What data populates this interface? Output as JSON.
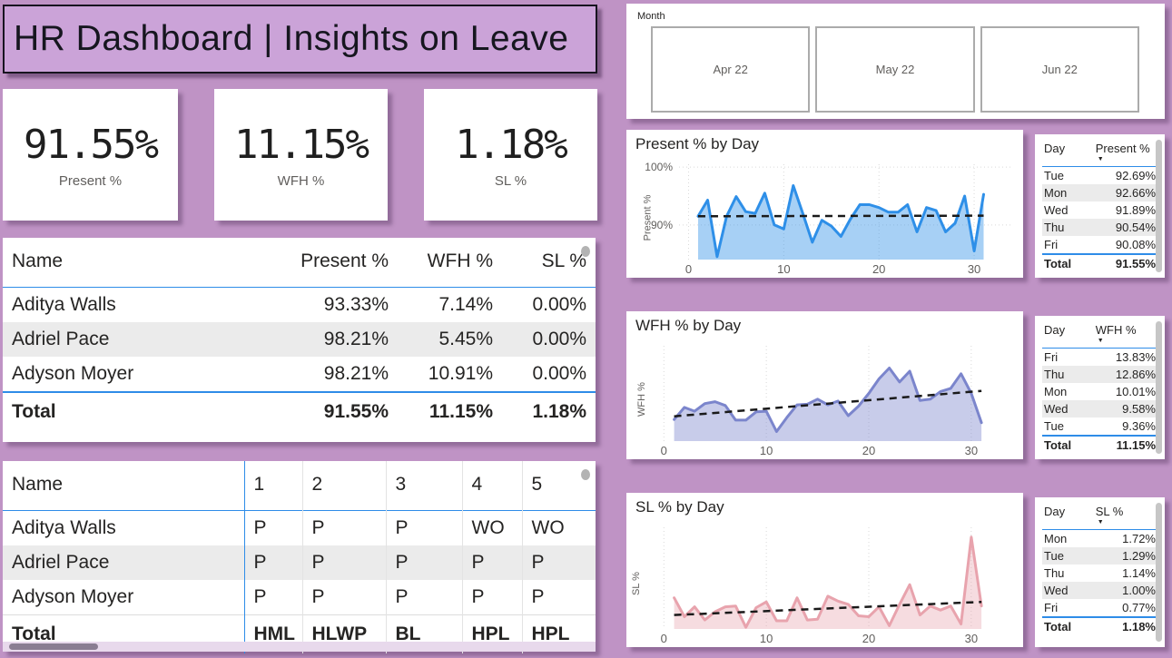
{
  "page_title": "HR Dashboard | Insights on Leave",
  "kpis": [
    {
      "value": "91.55%",
      "label": "Present %"
    },
    {
      "value": "11.15%",
      "label": "WFH %"
    },
    {
      "value": "1.18%",
      "label": "SL %"
    }
  ],
  "month_slicer": {
    "label": "Month",
    "options": [
      "Apr 22",
      "May 22",
      "Jun 22"
    ]
  },
  "summary_table": {
    "headers": [
      "Name",
      "Present %",
      "WFH %",
      "SL %"
    ],
    "rows": [
      [
        "Aditya Walls",
        "93.33%",
        "7.14%",
        "0.00%"
      ],
      [
        "Adriel Pace",
        "98.21%",
        "5.45%",
        "0.00%"
      ],
      [
        "Adyson Moyer",
        "98.21%",
        "10.91%",
        "0.00%"
      ]
    ],
    "total": [
      "Total",
      "91.55%",
      "11.15%",
      "1.18%"
    ]
  },
  "attendance_table": {
    "headers": [
      "Name",
      "1",
      "2",
      "3",
      "4",
      "5"
    ],
    "rows": [
      [
        "Aditya Walls",
        "P",
        "P",
        "P",
        "WO",
        "WO"
      ],
      [
        "Adriel Pace",
        "P",
        "P",
        "P",
        "P",
        "P"
      ],
      [
        "Adyson Moyer",
        "P",
        "P",
        "P",
        "P",
        "P"
      ]
    ],
    "total": [
      "Total",
      "HML",
      "HLWP",
      "BL",
      "HPL",
      "HPL"
    ]
  },
  "day_tables": [
    {
      "day_header": "Day",
      "metric": "Present %",
      "rows": [
        [
          "Tue",
          "92.69%"
        ],
        [
          "Mon",
          "92.66%"
        ],
        [
          "Wed",
          "91.89%"
        ],
        [
          "Thu",
          "90.54%"
        ],
        [
          "Fri",
          "90.08%"
        ]
      ],
      "total": [
        "Total",
        "91.55%"
      ]
    },
    {
      "day_header": "Day",
      "metric": "WFH %",
      "rows": [
        [
          "Fri",
          "13.83%"
        ],
        [
          "Thu",
          "12.86%"
        ],
        [
          "Mon",
          "10.01%"
        ],
        [
          "Wed",
          "9.58%"
        ],
        [
          "Tue",
          "9.36%"
        ]
      ],
      "total": [
        "Total",
        "11.15%"
      ]
    },
    {
      "day_header": "Day",
      "metric": "SL %",
      "rows": [
        [
          "Mon",
          "1.72%"
        ],
        [
          "Tue",
          "1.29%"
        ],
        [
          "Thu",
          "1.14%"
        ],
        [
          "Wed",
          "1.00%"
        ],
        [
          "Fri",
          "0.77%"
        ]
      ],
      "total": [
        "Total",
        "1.18%"
      ]
    }
  ],
  "chart_data": [
    {
      "type": "area",
      "title": "Present % by Day",
      "ylabel": "Present %",
      "x": [
        1,
        2,
        3,
        4,
        5,
        6,
        7,
        8,
        9,
        10,
        11,
        12,
        13,
        14,
        15,
        16,
        17,
        18,
        19,
        20,
        21,
        22,
        23,
        24,
        25,
        26,
        27,
        28,
        29,
        30,
        31
      ],
      "values": [
        91.5,
        94.3,
        84.5,
        91.5,
        94.9,
        92.3,
        92.0,
        95.5,
        90.0,
        89.3,
        96.8,
        92.0,
        87.0,
        90.8,
        89.8,
        88.0,
        91.0,
        93.5,
        93.5,
        93.0,
        92.2,
        92.2,
        93.5,
        88.8,
        93.0,
        92.5,
        88.8,
        90.3,
        95.0,
        85.5,
        95.3
      ],
      "trendline": {
        "start": 91.5,
        "end": 91.6
      },
      "ylim": [
        84,
        100.5
      ],
      "xticks": [
        0,
        10,
        20,
        30
      ],
      "yticks": [
        {
          "value": 100,
          "label": "100%"
        },
        {
          "value": 90,
          "label": "90%"
        }
      ],
      "line_color": "#2E8FE8",
      "fill_color": "rgba(46,143,232,0.42)",
      "trend_color": "#1a1a1a",
      "grid": true,
      "legend": "none"
    },
    {
      "type": "area",
      "title": "WFH % by Day",
      "ylabel": "WFH %",
      "x": [
        1,
        2,
        3,
        4,
        5,
        6,
        7,
        8,
        9,
        10,
        11,
        12,
        13,
        14,
        15,
        16,
        17,
        18,
        19,
        20,
        21,
        22,
        23,
        24,
        25,
        26,
        27,
        28,
        29,
        30,
        31
      ],
      "values": [
        8.4,
        10.3,
        9.7,
        10.9,
        11.2,
        10.6,
        8.3,
        8.3,
        9.6,
        9.7,
        6.5,
        8.7,
        10.7,
        10.8,
        11.6,
        10.7,
        11.3,
        9.0,
        10.5,
        12.5,
        14.8,
        16.5,
        14.3,
        16.0,
        11.4,
        11.6,
        12.8,
        13.3,
        15.6,
        12.5,
        7.9
      ],
      "trendline": {
        "start": 8.9,
        "end": 12.9
      },
      "ylim": [
        5,
        20
      ],
      "xticks": [
        0,
        10,
        20,
        30
      ],
      "yticks": [],
      "line_color": "#7B85CC",
      "fill_color": "rgba(123,133,204,0.42)",
      "trend_color": "#1a1a1a",
      "grid": true,
      "legend": "none"
    },
    {
      "type": "area",
      "title": "SL % by Day",
      "ylabel": "SL %",
      "x": [
        1,
        2,
        3,
        4,
        5,
        6,
        7,
        8,
        9,
        10,
        11,
        12,
        13,
        14,
        15,
        16,
        17,
        18,
        19,
        20,
        21,
        22,
        23,
        24,
        25,
        26,
        27,
        28,
        29,
        30,
        31
      ],
      "values": [
        1.9,
        0.75,
        1.35,
        0.55,
        1.05,
        1.35,
        1.4,
        0.1,
        1.3,
        1.65,
        0.5,
        0.5,
        1.9,
        0.55,
        0.6,
        2.0,
        1.7,
        1.5,
        0.8,
        0.75,
        1.35,
        0.2,
        1.5,
        2.7,
        0.85,
        1.4,
        1.15,
        1.4,
        0.3,
        5.6,
        1.4
      ],
      "trendline": {
        "start": 0.85,
        "end": 1.65
      },
      "ylim": [
        0,
        6.2
      ],
      "xticks": [
        0,
        10,
        20,
        30
      ],
      "yticks": [],
      "line_color": "#E8A3AD",
      "fill_color": "rgba(232,163,173,0.38)",
      "trend_color": "#1a1a1a",
      "grid": true,
      "legend": "none"
    }
  ],
  "colors": {
    "page_background": "#BF93C5",
    "title_background": "#CBA3D8",
    "panel_background": "#ffffff",
    "table_separator_blue": "#2E8CE8",
    "row_alt_background": "#EBEBEB",
    "muted_text": "#605E5C",
    "present_line": "#2E8FE8",
    "wfh_line": "#7B85CC",
    "sl_line": "#E8A3AD"
  }
}
